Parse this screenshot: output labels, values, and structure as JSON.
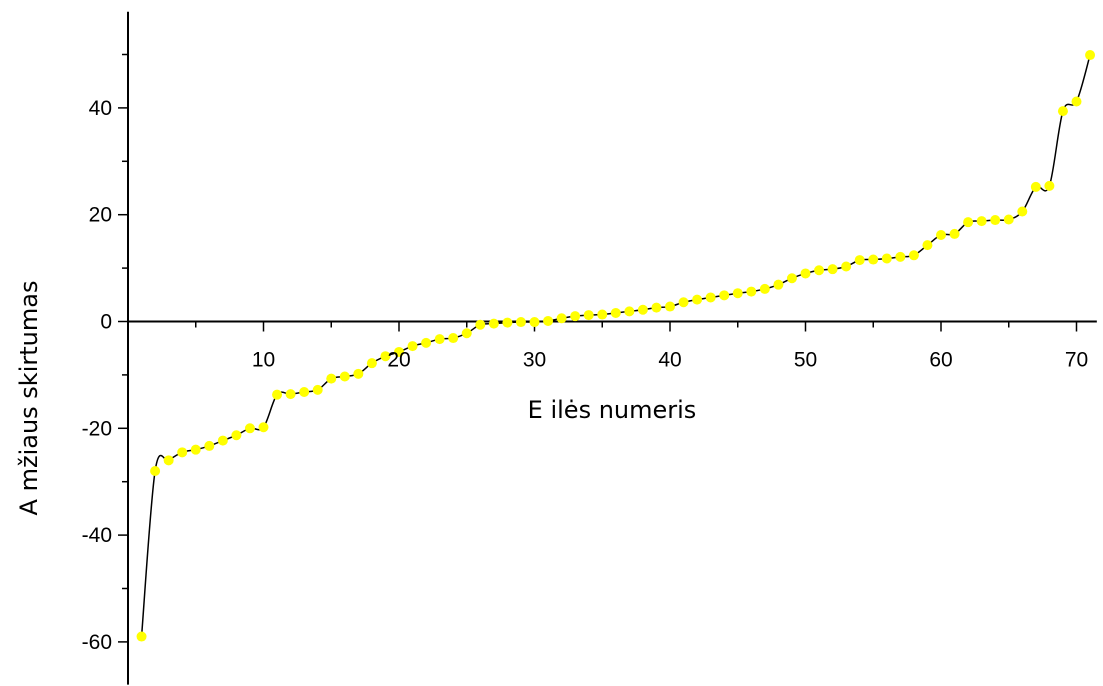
{
  "chart_data": {
    "type": "line",
    "title": "",
    "xlabel": "E ilės numeris",
    "ylabel": "A mžiaus skirtumas",
    "xlim": [
      0,
      71.5
    ],
    "ylim": [
      -68,
      58
    ],
    "x_ticks_major": [
      10,
      20,
      30,
      40,
      50,
      60,
      70
    ],
    "x_ticks_minor": [
      5,
      15,
      25,
      35,
      45,
      55,
      65
    ],
    "y_ticks_major": [
      -60,
      -40,
      -20,
      0,
      20,
      40
    ],
    "y_ticks_minor": [
      -50,
      -30,
      -10,
      10,
      30,
      50
    ],
    "grid": false,
    "legend": "none",
    "line_color": "#000000",
    "marker_color": "#ffff00",
    "series": [
      {
        "x": [
          1,
          2,
          3,
          4,
          5,
          6,
          7,
          8,
          9,
          10,
          11,
          12,
          13,
          14,
          15,
          16,
          17,
          18,
          19,
          20,
          21,
          22,
          23,
          24,
          25,
          26,
          27,
          28,
          29,
          30,
          31,
          32,
          33,
          34,
          35,
          36,
          37,
          38,
          39,
          40,
          41,
          42,
          43,
          44,
          45,
          46,
          47,
          48,
          49,
          50,
          51,
          52,
          53,
          54,
          55,
          56,
          57,
          58,
          59,
          60,
          61,
          62,
          63,
          64,
          65,
          66,
          67,
          68,
          69,
          70,
          71
        ],
        "values": [
          -59,
          -28,
          -26,
          -24.5,
          -24,
          -23.3,
          -22.3,
          -21.3,
          -20,
          -19.8,
          -13.7,
          -13.6,
          -13.2,
          -12.8,
          -10.7,
          -10.3,
          -9.8,
          -7.8,
          -6.5,
          -5.7,
          -4.6,
          -4.0,
          -3.3,
          -3.1,
          -2.2,
          -0.6,
          -0.4,
          -0.2,
          -0.1,
          -0.1,
          0.1,
          0.6,
          1.0,
          1.2,
          1.3,
          1.6,
          1.9,
          2.2,
          2.6,
          2.8,
          3.6,
          4.1,
          4.5,
          4.9,
          5.3,
          5.6,
          6.1,
          6.9,
          8.1,
          9.0,
          9.6,
          9.8,
          10.3,
          11.5,
          11.6,
          11.8,
          12.1,
          12.4,
          14.3,
          16.2,
          16.4,
          18.6,
          18.8,
          19.0,
          19.1,
          20.6,
          25.2,
          25.4,
          39.4,
          41.2,
          49.9
        ]
      }
    ]
  }
}
